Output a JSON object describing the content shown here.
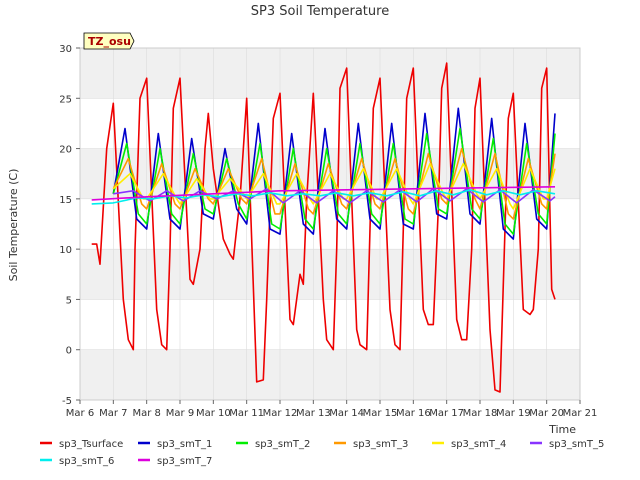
{
  "chart_data": {
    "type": "line",
    "title": "SP3 Soil Temperature",
    "xlabel": "Time",
    "ylabel": "Soil Temperature (C)",
    "xlim": [
      6,
      21
    ],
    "ylim": [
      -5,
      30
    ],
    "xticks": [
      6,
      7,
      8,
      9,
      10,
      11,
      12,
      13,
      14,
      15,
      16,
      17,
      18,
      19,
      20,
      21
    ],
    "xtick_labels": [
      "Mar 6",
      "Mar 7",
      "Mar 8",
      "Mar 9",
      "Mar 10",
      "Mar 11",
      "Mar 12",
      "Mar 13",
      "Mar 14",
      "Mar 15",
      "Mar 16",
      "Mar 17",
      "Mar 18",
      "Mar 19",
      "Mar 20",
      "Mar 21"
    ],
    "yticks": [
      -5,
      0,
      5,
      10,
      15,
      20,
      25,
      30
    ],
    "ytick_labels": [
      "-5",
      "0",
      "5",
      "10",
      "15",
      "20",
      "25",
      "30"
    ],
    "annotation": "TZ_osu",
    "background_bands": true,
    "legend_position": "bottom",
    "series": [
      {
        "name": "sp3_Tsurface",
        "color": "#ee0000",
        "x": [
          6.35,
          6.5,
          6.6,
          6.8,
          7.0,
          7.3,
          7.45,
          7.6,
          7.65,
          7.8,
          8.0,
          8.3,
          8.45,
          8.6,
          8.7,
          8.8,
          9.0,
          9.3,
          9.4,
          9.6,
          9.75,
          9.85,
          10.0,
          10.3,
          10.5,
          10.6,
          10.8,
          11.0,
          11.3,
          11.5,
          11.6,
          11.8,
          12.0,
          12.3,
          12.4,
          12.6,
          12.7,
          12.8,
          13.0,
          13.3,
          13.4,
          13.6,
          13.7,
          13.8,
          14.0,
          14.3,
          14.4,
          14.6,
          14.7,
          14.8,
          15.0,
          15.3,
          15.45,
          15.6,
          15.7,
          15.8,
          16.0,
          16.3,
          16.45,
          16.6,
          16.75,
          16.85,
          17.0,
          17.3,
          17.45,
          17.6,
          17.75,
          17.85,
          18.0,
          18.3,
          18.45,
          18.6,
          18.75,
          18.85,
          19.0,
          19.3,
          19.5,
          19.6,
          19.75,
          19.85,
          20.0,
          20.15,
          20.25
        ],
        "y": [
          10.5,
          10.5,
          8.5,
          20,
          24.5,
          5,
          1,
          0,
          10,
          25,
          27,
          4,
          0.5,
          0,
          10,
          24,
          27,
          7,
          6.5,
          10,
          20,
          23.5,
          18,
          11,
          9.5,
          9,
          15,
          25,
          -3.2,
          -3,
          5,
          23,
          25.5,
          3,
          2.5,
          7.5,
          6.5,
          15,
          25.5,
          5,
          1,
          0,
          10,
          26,
          28,
          2,
          0.5,
          0,
          12,
          24,
          27,
          4,
          0.5,
          0,
          12,
          25,
          28,
          4,
          2.5,
          2.5,
          14,
          26,
          28.5,
          3,
          1,
          1,
          10,
          24,
          27,
          2,
          -4,
          -4.2,
          12,
          23,
          25.5,
          4,
          3.5,
          4,
          10,
          26,
          28,
          6,
          5
        ]
      },
      {
        "name": "sp3_smT_1",
        "color": "#0000cc",
        "x": [
          7.0,
          7.35,
          7.7,
          8.0,
          8.35,
          8.7,
          9.0,
          9.35,
          9.7,
          10.0,
          10.35,
          10.7,
          11.0,
          11.35,
          11.7,
          12.0,
          12.35,
          12.7,
          13.0,
          13.35,
          13.7,
          14.0,
          14.35,
          14.7,
          15.0,
          15.35,
          15.7,
          16.0,
          16.35,
          16.7,
          17.0,
          17.35,
          17.7,
          18.0,
          18.35,
          18.7,
          19.0,
          19.35,
          19.7,
          20.0,
          20.25
        ],
        "y": [
          15.5,
          22,
          13,
          12,
          21.5,
          13,
          12,
          21,
          13.5,
          13,
          20,
          14,
          12.5,
          22.5,
          12,
          11.5,
          21.5,
          12.5,
          11.5,
          22,
          13,
          12,
          22.5,
          13,
          12,
          22.5,
          12.5,
          12,
          23.5,
          13.5,
          13,
          24,
          13.5,
          12.5,
          23,
          12,
          11,
          22.5,
          13,
          12,
          23.5
        ]
      },
      {
        "name": "sp3_smT_2",
        "color": "#00ee00",
        "x": [
          7.0,
          7.4,
          7.75,
          8.0,
          8.4,
          8.75,
          9.0,
          9.4,
          9.75,
          10.0,
          10.4,
          10.75,
          11.0,
          11.4,
          11.75,
          12.0,
          12.4,
          12.75,
          13.0,
          13.4,
          13.75,
          14.0,
          14.4,
          14.75,
          15.0,
          15.4,
          15.75,
          16.0,
          16.4,
          16.75,
          17.0,
          17.4,
          17.75,
          18.0,
          18.4,
          18.75,
          19.0,
          19.4,
          19.75,
          20.0,
          20.25
        ],
        "y": [
          15.5,
          20.5,
          13.5,
          12.5,
          20,
          13.5,
          12.5,
          19.5,
          14,
          13.5,
          19,
          14.5,
          13,
          20.5,
          12.5,
          12,
          20,
          13,
          12,
          20,
          13.5,
          12.5,
          20.5,
          13.5,
          12.5,
          20.5,
          13,
          12.5,
          21.5,
          14,
          13.5,
          22,
          14,
          13,
          21,
          12.5,
          11.5,
          20.5,
          13.5,
          12.5,
          21.5
        ]
      },
      {
        "name": "sp3_smT_3",
        "color": "#ff9900",
        "x": [
          7.0,
          7.45,
          7.85,
          8.0,
          8.45,
          8.85,
          9.0,
          9.45,
          9.85,
          10.0,
          10.45,
          10.85,
          11.0,
          11.45,
          11.85,
          12.0,
          12.45,
          12.85,
          13.0,
          13.45,
          13.85,
          14.0,
          14.45,
          14.85,
          15.0,
          15.45,
          15.85,
          16.0,
          16.45,
          16.85,
          17.0,
          17.45,
          17.85,
          18.0,
          18.45,
          18.85,
          19.0,
          19.45,
          19.85,
          20.0,
          20.25
        ],
        "y": [
          16,
          19,
          14.5,
          14,
          18.5,
          14.5,
          14,
          18,
          15,
          14.5,
          18,
          15,
          14.5,
          19,
          13.5,
          13.5,
          18.5,
          14,
          13.5,
          18.5,
          14.5,
          14,
          19,
          14.5,
          14,
          19,
          14,
          13.5,
          19.5,
          15,
          14.5,
          20,
          15,
          14,
          19.5,
          13.5,
          13,
          19,
          14.5,
          14,
          19.5
        ]
      },
      {
        "name": "sp3_smT_4",
        "color": "#ffee00",
        "x": [
          7.0,
          7.5,
          7.9,
          8.0,
          8.5,
          8.9,
          9.0,
          9.5,
          9.9,
          10.0,
          10.5,
          10.9,
          11.0,
          11.5,
          11.9,
          12.0,
          12.5,
          12.9,
          13.0,
          13.5,
          13.9,
          14.0,
          14.5,
          14.9,
          15.0,
          15.5,
          15.9,
          16.0,
          16.5,
          16.9,
          17.0,
          17.5,
          17.9,
          18.0,
          18.5,
          18.9,
          19.0,
          19.5,
          19.9,
          20.0,
          20.25
        ],
        "y": [
          16,
          17.5,
          15,
          15,
          17.5,
          15,
          14.5,
          17,
          15,
          15,
          17,
          15.5,
          15,
          17.5,
          14.5,
          14.5,
          17.5,
          15,
          14.5,
          17.5,
          15,
          15,
          18,
          15,
          15,
          18,
          15,
          14.5,
          18.5,
          15.5,
          15,
          18.5,
          15.5,
          15,
          18,
          14.5,
          14,
          18,
          15,
          15,
          18
        ]
      },
      {
        "name": "sp3_smT_5",
        "color": "#8833ff",
        "x": [
          7.0,
          7.6,
          8.1,
          8.6,
          9.1,
          9.6,
          10.1,
          10.6,
          11.1,
          11.6,
          12.1,
          12.6,
          13.1,
          13.6,
          14.1,
          14.6,
          15.1,
          15.6,
          16.1,
          16.6,
          17.1,
          17.6,
          18.1,
          18.6,
          19.1,
          19.6,
          20.1,
          20.25
        ],
        "y": [
          15.5,
          15.8,
          14.8,
          15.8,
          14.8,
          15.8,
          15,
          15.8,
          15,
          16,
          14.6,
          15.8,
          14.6,
          15.8,
          14.6,
          15.8,
          14.7,
          15.9,
          14.7,
          16,
          14.8,
          16,
          14.7,
          15.9,
          14.6,
          15.9,
          14.8,
          15.2
        ]
      },
      {
        "name": "sp3_smT_6",
        "color": "#00eeee",
        "x": [
          6.35,
          7.0,
          7.7,
          8.2,
          8.7,
          9.2,
          9.7,
          10.2,
          10.7,
          11.2,
          11.7,
          12.2,
          12.7,
          13.2,
          13.7,
          14.2,
          14.7,
          15.2,
          15.7,
          16.2,
          16.7,
          17.2,
          17.7,
          18.2,
          18.7,
          19.2,
          19.7,
          20.25
        ],
        "y": [
          14.5,
          14.6,
          15.1,
          15,
          15.3,
          15.1,
          15.4,
          15.2,
          15.5,
          15.3,
          15.6,
          15.3,
          15.5,
          15.3,
          15.6,
          15.3,
          15.6,
          15.3,
          15.7,
          15.3,
          15.8,
          15.4,
          15.9,
          15.4,
          15.8,
          15.4,
          15.8,
          15.5
        ]
      },
      {
        "name": "sp3_smT_7",
        "color": "#dd00dd",
        "x": [
          6.35,
          8.0,
          10.0,
          12.0,
          14.0,
          16.0,
          18.0,
          20.25
        ],
        "y": [
          14.9,
          15.2,
          15.5,
          15.8,
          15.9,
          16.0,
          16.1,
          16.2
        ]
      }
    ]
  }
}
